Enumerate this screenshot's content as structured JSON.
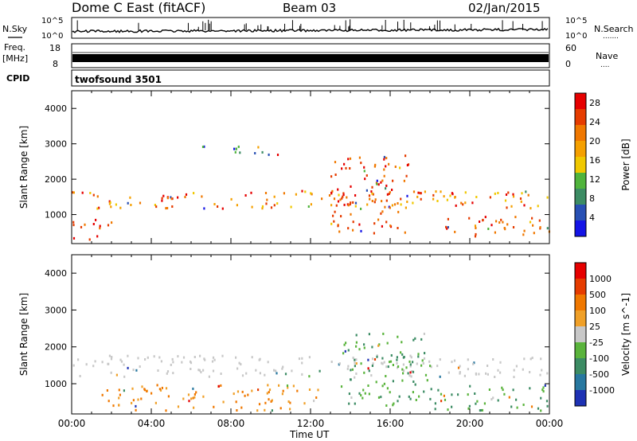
{
  "header": {
    "station": "Dome C East (fitACF)",
    "beam": "Beam 03",
    "date": "02/Jan/2015"
  },
  "strip_labels": {
    "nsky": "N.Sky",
    "nsearch": "N.Search",
    "nsearch_dots": ".......",
    "freq_line1": "Freq.",
    "freq_line2": "[MHz]",
    "nave": "Nave",
    "nave_dots": "....",
    "cpid": "CPID",
    "cpid_value": "twofsound 3501",
    "noise_top_left": "10^5",
    "noise_bot_left": "10^0",
    "noise_top_right": "10^5",
    "noise_bot_right": "10^0",
    "freq_top": "18",
    "freq_bot": "8",
    "nave_top": "60",
    "nave_bot": "0"
  },
  "chart_data": [
    {
      "type": "heatmap",
      "panel": "power",
      "xlabel": "Time UT",
      "ylabel": "Slant Range [km]",
      "xlim_hours": [
        0,
        24
      ],
      "ylim_km": [
        180,
        4500
      ],
      "x_ticks": [
        "00:00",
        "04:00",
        "08:00",
        "12:00",
        "16:00",
        "20:00",
        "00:00"
      ],
      "y_ticks": [
        1000,
        2000,
        3000,
        4000
      ],
      "colorbar": {
        "label": "Power [dB]",
        "ticks": [
          "4",
          "8",
          "12",
          "16",
          "20",
          "24",
          "28"
        ],
        "range": [
          0,
          30
        ],
        "colors": [
          "#1414e6",
          "#2850b4",
          "#3c8c64",
          "#50b43c",
          "#f0c800",
          "#f5a000",
          "#f07800",
          "#e63c00",
          "#e60000"
        ]
      },
      "echo_bands": [
        {
          "t_start": 0.0,
          "t_end": 24.0,
          "r_min": 1200,
          "r_max": 1700,
          "dominant": "orange-red"
        },
        {
          "t_start": 0.0,
          "t_end": 2.0,
          "r_min": 300,
          "r_max": 900,
          "dominant": "red"
        },
        {
          "t_start": 6.5,
          "t_end": 10.5,
          "r_min": 2700,
          "r_max": 3000,
          "dominant": "green-blue"
        },
        {
          "t_start": 13.0,
          "t_end": 17.0,
          "r_min": 500,
          "r_max": 2700,
          "dominant": "red"
        },
        {
          "t_start": 18.5,
          "t_end": 24.0,
          "r_min": 400,
          "r_max": 1000,
          "dominant": "red"
        }
      ]
    },
    {
      "type": "heatmap",
      "panel": "velocity",
      "xlabel": "Time UT",
      "ylabel": "Slant Range [km]",
      "xlim_hours": [
        0,
        24
      ],
      "ylim_km": [
        180,
        4500
      ],
      "x_ticks": [
        "00:00",
        "04:00",
        "08:00",
        "12:00",
        "16:00",
        "20:00",
        "00:00"
      ],
      "y_ticks": [
        1000,
        2000,
        3000,
        4000
      ],
      "colorbar": {
        "label": "Velocity [m s^-1]",
        "ticks": [
          "1000",
          "500",
          "100",
          "25",
          "-25",
          "-100",
          "-500",
          "-1000"
        ],
        "range": [
          -1000,
          1000
        ],
        "colors": [
          "#1e32b4",
          "#2878a0",
          "#3c8c64",
          "#5ab43c",
          "#c8c8c8",
          "#f0a028",
          "#f07800",
          "#e63c00",
          "#e60000"
        ]
      },
      "echo_bands": [
        {
          "t_start": 0.0,
          "t_end": 24.0,
          "r_min": 1200,
          "r_max": 1800,
          "dominant": "grey"
        },
        {
          "t_start": 1.5,
          "t_end": 12.5,
          "r_min": 300,
          "r_max": 1000,
          "dominant": "orange"
        },
        {
          "t_start": 13.5,
          "t_end": 18.0,
          "r_min": 400,
          "r_max": 2400,
          "dominant": "green"
        },
        {
          "t_start": 18.0,
          "t_end": 24.0,
          "r_min": 300,
          "r_max": 1000,
          "dominant": "green"
        }
      ]
    }
  ]
}
